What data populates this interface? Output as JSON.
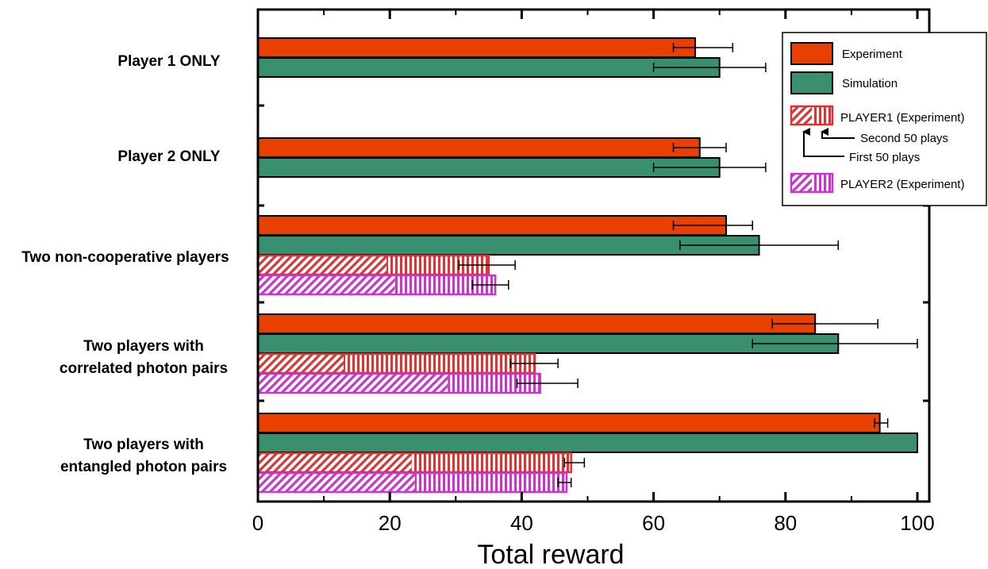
{
  "chart_data": {
    "type": "bar",
    "orientation": "horizontal",
    "xlabel": "Total reward",
    "xlim": [
      0,
      100
    ],
    "xticks": [
      0,
      20,
      40,
      60,
      80,
      100
    ],
    "grid": false,
    "legend_position": "top-right",
    "colors": {
      "experiment": "#e84000",
      "simulation": "#3a8f6f",
      "player1": "#dd3333",
      "player2": "#cc33cc"
    },
    "categories": [
      {
        "label": [
          "Player 1 ONLY"
        ],
        "experiment": {
          "value": 66.3,
          "err_low": 63.0,
          "err_high": 72.0
        },
        "simulation": {
          "value": 70.0,
          "err_low": 60.0,
          "err_high": 77.0
        }
      },
      {
        "label": [
          "Player 2 ONLY"
        ],
        "experiment": {
          "value": 67.0,
          "err_low": 63.0,
          "err_high": 71.0
        },
        "simulation": {
          "value": 70.0,
          "err_low": 60.0,
          "err_high": 77.0
        }
      },
      {
        "label": [
          "Two non-cooperative players"
        ],
        "experiment": {
          "value": 71.0,
          "err_low": 63.0,
          "err_high": 75.0
        },
        "simulation": {
          "value": 76.0,
          "err_low": 64.0,
          "err_high": 88.0
        },
        "player1": {
          "first_50": 19.5,
          "total": 35.0,
          "err_low": 30.5,
          "err_high": 39.0
        },
        "player2": {
          "first_50": 20.8,
          "total": 36.0,
          "err_low": 32.5,
          "err_high": 38.0
        }
      },
      {
        "label": [
          "Two players with",
          "correlated photon pairs"
        ],
        "experiment": {
          "value": 84.5,
          "err_low": 78.0,
          "err_high": 94.0
        },
        "simulation": {
          "value": 88.0,
          "err_low": 75.0,
          "err_high": 100.0
        },
        "player1": {
          "first_50": 13.0,
          "total": 42.0,
          "err_low": 38.3,
          "err_high": 45.5
        },
        "player2": {
          "first_50": 28.8,
          "total": 42.8,
          "err_low": 39.3,
          "err_high": 48.5
        }
      },
      {
        "label": [
          "Two players with",
          "entangled photon pairs"
        ],
        "experiment": {
          "value": 94.3,
          "err_low": 93.5,
          "err_high": 95.5
        },
        "simulation": {
          "value": 100.0,
          "err_low": 100.0,
          "err_high": 100.0
        },
        "player1": {
          "first_50": 23.3,
          "total": 47.5,
          "err_low": 46.5,
          "err_high": 49.5
        },
        "player2": {
          "first_50": 23.8,
          "total": 46.8,
          "err_low": 45.5,
          "err_high": 47.5
        }
      }
    ],
    "legend": {
      "experiment": "Experiment",
      "simulation": "Simulation",
      "player1": "PLAYER1 (Experiment)",
      "second_50": "Second 50 plays",
      "first_50": "First 50 plays",
      "player2": "PLAYER2 (Experiment)"
    }
  }
}
